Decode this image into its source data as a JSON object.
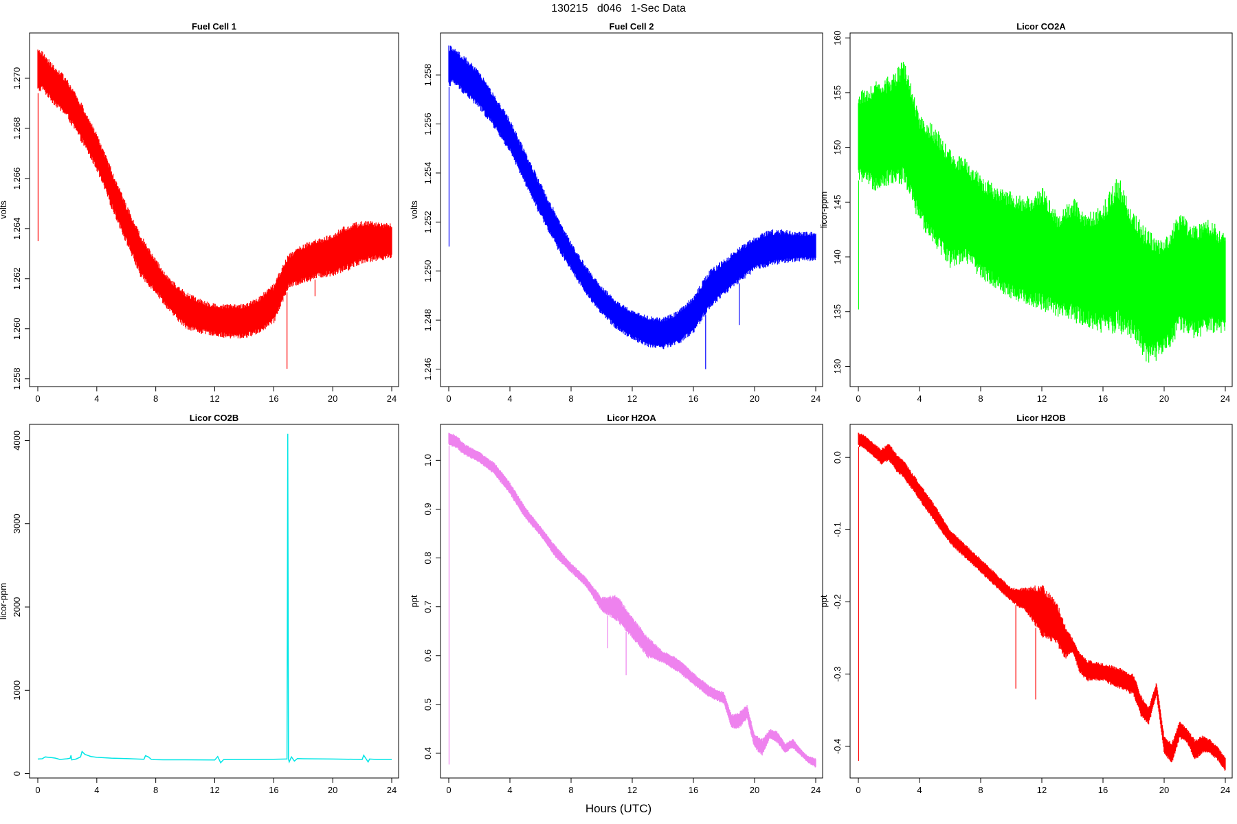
{
  "figure": {
    "title": "130215   d046   1-Sec Data",
    "xlabel": "Hours (UTC)"
  },
  "chart_data": [
    {
      "type": "line",
      "title": "Fuel Cell 1",
      "xlabel": "",
      "ylabel": "volts",
      "color": "#ff0000",
      "xlim": [
        0,
        24
      ],
      "ylim": [
        1.2578,
        1.2717
      ],
      "xticks": [
        "0",
        "4",
        "8",
        "12",
        "16",
        "20",
        "24"
      ],
      "yticks": [
        "1.258",
        "1.260",
        "1.262",
        "1.264",
        "1.266",
        "1.268",
        "1.270"
      ],
      "envelope": {
        "x": [
          0,
          0.3,
          1,
          2,
          3,
          4,
          5,
          6,
          7,
          8,
          9,
          10,
          11,
          12,
          13,
          14,
          15,
          16,
          17,
          18,
          19,
          20,
          21,
          22,
          23,
          24
        ],
        "low": [
          1.2694,
          1.2695,
          1.269,
          1.2684,
          1.2674,
          1.2663,
          1.2648,
          1.2634,
          1.262,
          1.2614,
          1.2606,
          1.26,
          1.2598,
          1.2597,
          1.2596,
          1.2596,
          1.2598,
          1.2602,
          1.2616,
          1.2618,
          1.262,
          1.2621,
          1.2623,
          1.2626,
          1.2627,
          1.2628
        ],
        "high": [
          1.2712,
          1.2711,
          1.2706,
          1.27,
          1.269,
          1.2678,
          1.2664,
          1.265,
          1.2638,
          1.2628,
          1.262,
          1.2615,
          1.2612,
          1.261,
          1.261,
          1.261,
          1.2613,
          1.2618,
          1.263,
          1.2634,
          1.2636,
          1.2638,
          1.2642,
          1.2643,
          1.2643,
          1.2642
        ]
      },
      "spikes": [
        {
          "x": 0.02,
          "y": 1.2635
        },
        {
          "x": 16.9,
          "y": 1.2584
        },
        {
          "x": 18.8,
          "y": 1.2613
        }
      ]
    },
    {
      "type": "line",
      "title": "Fuel Cell 2",
      "xlabel": "",
      "ylabel": "volts",
      "color": "#0000ff",
      "xlim": [
        0,
        24
      ],
      "ylim": [
        1.2454,
        1.2596
      ],
      "xticks": [
        "0",
        "4",
        "8",
        "12",
        "16",
        "20",
        "24"
      ],
      "yticks": [
        "1.246",
        "1.248",
        "1.250",
        "1.252",
        "1.254",
        "1.256",
        "1.258"
      ],
      "envelope": {
        "x": [
          0,
          0.3,
          1,
          2,
          3,
          4,
          5,
          6,
          7,
          8,
          9,
          10,
          11,
          12,
          13,
          14,
          15,
          16,
          17,
          18,
          19,
          20,
          21,
          22,
          23,
          24
        ],
        "low": [
          1.2575,
          1.2576,
          1.2572,
          1.2566,
          1.2558,
          1.2548,
          1.2535,
          1.2522,
          1.251,
          1.25,
          1.249,
          1.2482,
          1.2476,
          1.2472,
          1.2469,
          1.2468,
          1.247,
          1.2474,
          1.2484,
          1.249,
          1.2495,
          1.25,
          1.2502,
          1.2503,
          1.2504,
          1.2504
        ],
        "high": [
          1.2592,
          1.2592,
          1.2588,
          1.2582,
          1.2572,
          1.2562,
          1.2549,
          1.2536,
          1.2524,
          1.2512,
          1.2502,
          1.2494,
          1.2488,
          1.2484,
          1.2482,
          1.2481,
          1.2484,
          1.249,
          1.25,
          1.2505,
          1.251,
          1.2514,
          1.2517,
          1.2517,
          1.2516,
          1.2516
        ]
      },
      "spikes": [
        {
          "x": 0.02,
          "y": 1.251
        },
        {
          "x": 16.8,
          "y": 1.246
        },
        {
          "x": 19.0,
          "y": 1.2478
        }
      ]
    },
    {
      "type": "line",
      "title": "Licor CO2A",
      "xlabel": "",
      "ylabel": "licor-ppm",
      "color": "#00ff00",
      "xlim": [
        0,
        24
      ],
      "ylim": [
        128.4,
        160.2
      ],
      "xticks": [
        "0",
        "4",
        "8",
        "12",
        "16",
        "20",
        "24"
      ],
      "yticks": [
        "130",
        "135",
        "140",
        "145",
        "150",
        "155",
        "160"
      ],
      "envelope": {
        "x": [
          0,
          1,
          2,
          3,
          4,
          5,
          6,
          7,
          8,
          9,
          10,
          11,
          12,
          13,
          14,
          15,
          16,
          17,
          18,
          19,
          20,
          21,
          22,
          23,
          24
        ],
        "low": [
          147,
          146,
          146.5,
          146.5,
          143,
          141,
          139,
          139.5,
          138,
          137,
          136,
          135.5,
          135,
          134.5,
          134,
          133.5,
          133,
          133,
          132.5,
          130,
          131,
          133,
          132.5,
          133,
          133
        ],
        "high": [
          155,
          156,
          156.5,
          158,
          153,
          152,
          150,
          149,
          147.5,
          146.5,
          146,
          145.5,
          146.5,
          144,
          145.5,
          144,
          145,
          147.5,
          144,
          142.5,
          141.5,
          144,
          143,
          143.5,
          142
        ]
      },
      "spikes": [
        {
          "x": 0.02,
          "y": 135.2
        }
      ]
    },
    {
      "type": "line",
      "title": "Licor CO2B",
      "xlabel": "",
      "ylabel": "licor-ppm",
      "color": "#00e6e6",
      "xlim": [
        0,
        24
      ],
      "ylim": [
        -20,
        4160
      ],
      "xticks": [
        "0",
        "4",
        "8",
        "12",
        "16",
        "20",
        "24"
      ],
      "yticks": [
        "0",
        "1000",
        "2000",
        "3000",
        "4000"
      ],
      "series": {
        "x": [
          0,
          0.3,
          0.5,
          1.0,
          1.2,
          1.5,
          2.0,
          2.2,
          2.25,
          2.3,
          2.6,
          2.9,
          3.0,
          3.2,
          3.6,
          4.0,
          5.0,
          6.0,
          7.2,
          7.3,
          7.5,
          7.7,
          7.9,
          8.5,
          10,
          12.0,
          12.2,
          12.4,
          12.6,
          14,
          15,
          16,
          16.8,
          16.9,
          16.95,
          17.0,
          17.05,
          17.2,
          17.4,
          17.6,
          18,
          20,
          22.0,
          22.1,
          22.4,
          22.5,
          23,
          24
        ],
        "y": [
          175,
          178,
          200,
          190,
          185,
          170,
          178,
          185,
          220,
          165,
          175,
          200,
          265,
          230,
          205,
          195,
          185,
          180,
          172,
          215,
          200,
          170,
          168,
          165,
          165,
          163,
          205,
          130,
          168,
          170,
          170,
          172,
          175,
          175,
          4080,
          175,
          140,
          200,
          150,
          180,
          178,
          175,
          170,
          220,
          140,
          175,
          170,
          170
        ]
      }
    },
    {
      "type": "line",
      "title": "Licor H2OA",
      "xlabel": "",
      "ylabel": "ppt",
      "color": "#ee82ee",
      "xlim": [
        0,
        24
      ],
      "ylim": [
        0.355,
        1.068
      ],
      "xticks": [
        "0",
        "4",
        "8",
        "12",
        "16",
        "20",
        "24"
      ],
      "yticks": [
        "0.4",
        "0.5",
        "0.6",
        "0.7",
        "0.8",
        "0.9",
        "1.0"
      ],
      "envelope": {
        "x": [
          0,
          0.5,
          1,
          2,
          3,
          4,
          5,
          6,
          7,
          8,
          9,
          10,
          11,
          12,
          13,
          14,
          15,
          16,
          17,
          18,
          18.5,
          19,
          19.5,
          20,
          20.5,
          21,
          21.5,
          22,
          22.5,
          23,
          23.5,
          24
        ],
        "low": [
          1.03,
          1.025,
          1.01,
          0.995,
          0.97,
          0.93,
          0.88,
          0.845,
          0.8,
          0.77,
          0.74,
          0.69,
          0.67,
          0.635,
          0.595,
          0.585,
          0.565,
          0.54,
          0.515,
          0.5,
          0.45,
          0.45,
          0.47,
          0.41,
          0.395,
          0.43,
          0.42,
          0.4,
          0.41,
          0.395,
          0.38,
          0.37
        ],
        "high": [
          1.058,
          1.052,
          1.035,
          1.018,
          0.995,
          0.955,
          0.905,
          0.865,
          0.825,
          0.79,
          0.76,
          0.72,
          0.725,
          0.68,
          0.64,
          0.61,
          0.595,
          0.565,
          0.54,
          0.525,
          0.48,
          0.485,
          0.5,
          0.44,
          0.43,
          0.45,
          0.445,
          0.42,
          0.43,
          0.41,
          0.395,
          0.39
        ]
      },
      "spikes": [
        {
          "x": 0.02,
          "y": 0.377
        },
        {
          "x": 10.4,
          "y": 0.615
        },
        {
          "x": 11.6,
          "y": 0.56
        }
      ]
    },
    {
      "type": "line",
      "title": "Licor H2OB",
      "xlabel": "",
      "ylabel": "ppt",
      "color": "#ff0000",
      "xlim": [
        0,
        24
      ],
      "ylim": [
        -0.44,
        0.042
      ],
      "xticks": [
        "0",
        "4",
        "8",
        "12",
        "16",
        "20",
        "24"
      ],
      "yticks": [
        "0.0",
        "-0.1",
        "-0.2",
        "-0.3",
        "-0.4"
      ],
      "envelope": {
        "x": [
          0,
          0.5,
          1,
          1.5,
          2,
          2.5,
          3,
          4,
          5,
          6,
          7,
          8,
          9,
          10,
          11,
          12,
          13,
          13.5,
          14,
          14.5,
          15,
          16,
          17,
          18,
          18.5,
          19,
          19.5,
          20,
          20.5,
          21,
          21.5,
          22,
          22.5,
          23,
          23.5,
          24
        ],
        "low": [
          0.015,
          0.01,
          0.0,
          -0.01,
          -0.005,
          -0.02,
          -0.03,
          -0.06,
          -0.09,
          -0.12,
          -0.14,
          -0.16,
          -0.18,
          -0.2,
          -0.215,
          -0.25,
          -0.26,
          -0.28,
          -0.27,
          -0.3,
          -0.31,
          -0.31,
          -0.32,
          -0.33,
          -0.36,
          -0.37,
          -0.33,
          -0.41,
          -0.425,
          -0.39,
          -0.395,
          -0.42,
          -0.41,
          -0.41,
          -0.42,
          -0.435
        ],
        "high": [
          0.035,
          0.03,
          0.02,
          0.012,
          0.02,
          0.005,
          -0.005,
          -0.035,
          -0.065,
          -0.1,
          -0.12,
          -0.14,
          -0.16,
          -0.18,
          -0.18,
          -0.175,
          -0.2,
          -0.23,
          -0.25,
          -0.27,
          -0.28,
          -0.285,
          -0.29,
          -0.3,
          -0.33,
          -0.345,
          -0.31,
          -0.385,
          -0.395,
          -0.365,
          -0.375,
          -0.39,
          -0.385,
          -0.39,
          -0.4,
          -0.415
        ]
      },
      "spikes": [
        {
          "x": 0.02,
          "y": -0.42
        },
        {
          "x": 10.3,
          "y": -0.32
        },
        {
          "x": 11.6,
          "y": -0.335
        }
      ]
    }
  ]
}
